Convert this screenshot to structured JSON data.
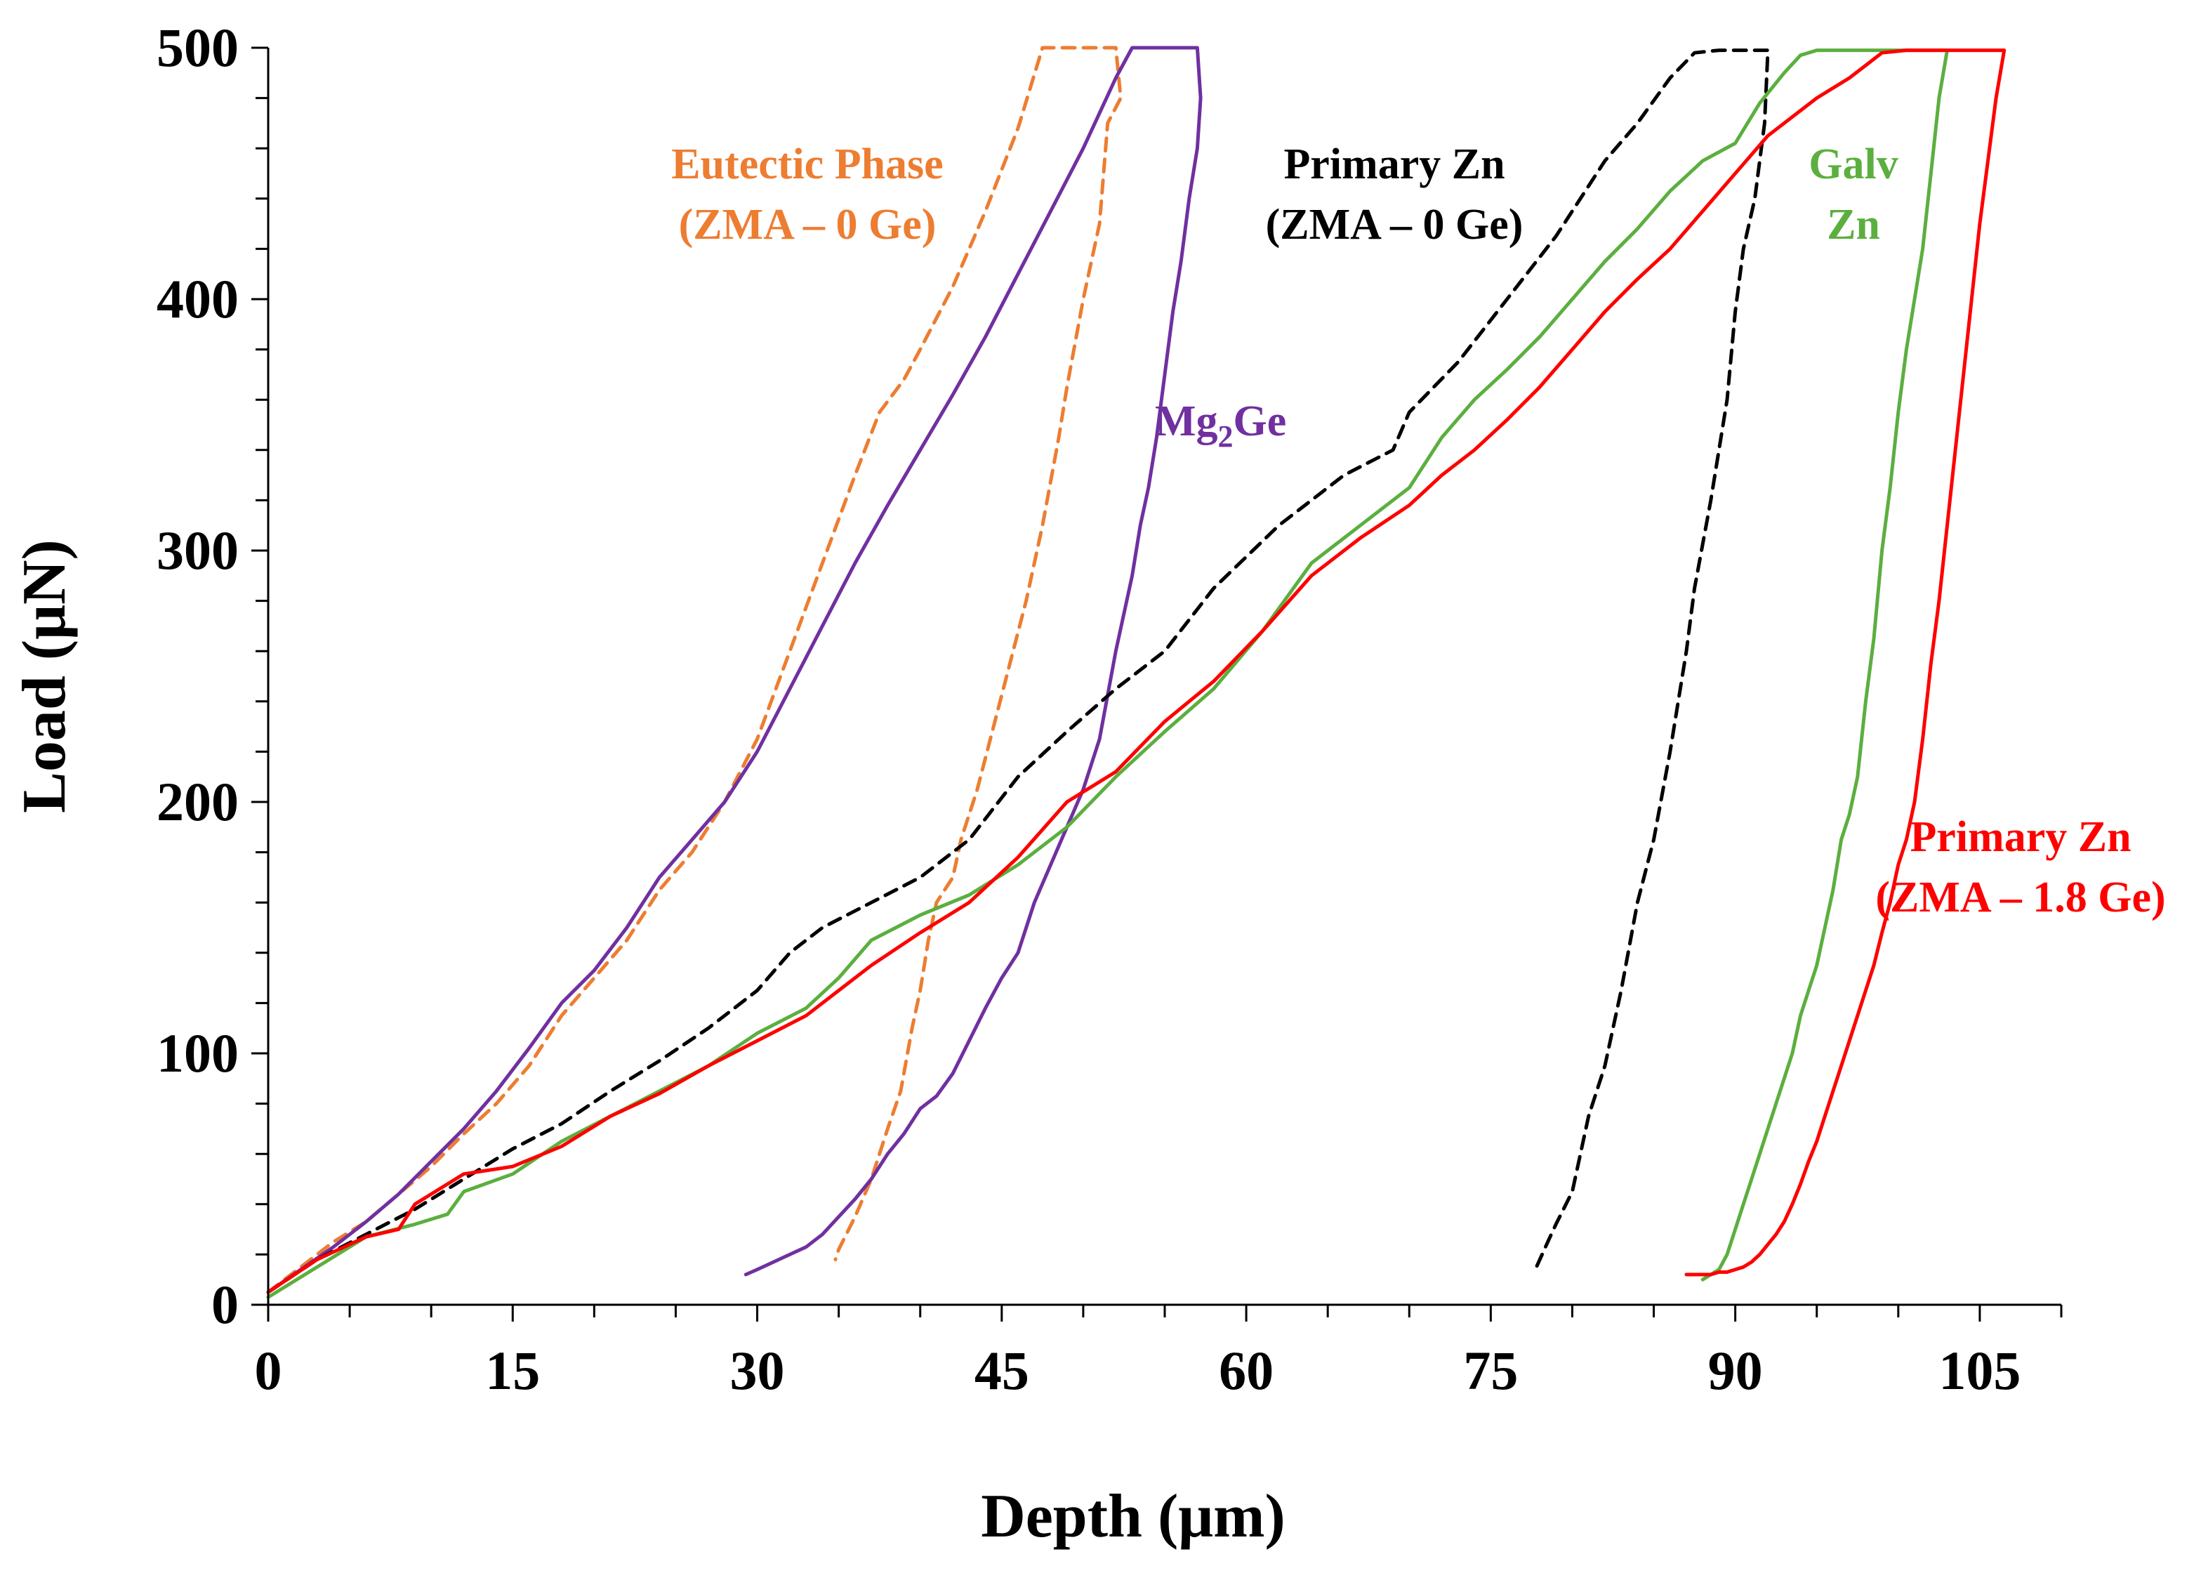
{
  "chart_data": {
    "type": "line",
    "title": "",
    "xlabel": "Depth (μm)",
    "ylabel": "Load (μN)",
    "xlim": [
      0,
      110
    ],
    "ylim": [
      0,
      500
    ],
    "xticks": [
      0,
      15,
      30,
      45,
      60,
      75,
      90,
      105
    ],
    "yticks": [
      0,
      100,
      200,
      300,
      400,
      500
    ],
    "x_minor_step": 5,
    "y_minor_step": 20,
    "grid": false,
    "series": [
      {
        "name": "Eutectic Phase (ZMA – 0 Ge)",
        "label_lines": [
          "Eutectic Phase",
          "(ZMA – 0 Ge)"
        ],
        "color": "#ED7D31",
        "dash": true,
        "x": [
          0,
          2,
          4,
          6,
          8,
          10,
          12,
          14,
          16,
          18,
          20,
          22,
          24,
          26,
          28,
          30,
          32,
          34,
          36,
          37.5,
          39,
          40,
          42,
          44,
          46,
          47.5,
          48,
          49,
          50.5,
          51.5,
          52,
          52.3,
          51.5,
          51,
          50,
          49,
          48.5,
          47.5,
          46.5,
          45.5,
          44.5,
          43.5,
          42.5,
          42,
          41,
          40.5,
          40,
          39.5,
          38.8,
          38,
          37.5,
          37,
          36,
          35,
          34.8
        ],
        "y": [
          5,
          15,
          25,
          33,
          44,
          55,
          68,
          80,
          95,
          115,
          130,
          145,
          165,
          180,
          200,
          225,
          260,
          295,
          330,
          355,
          368,
          380,
          405,
          435,
          468,
          500,
          500,
          500,
          500,
          500,
          500,
          480,
          470,
          430,
          400,
          365,
          345,
          310,
          280,
          255,
          230,
          205,
          185,
          170,
          160,
          145,
          125,
          110,
          85,
          70,
          60,
          50,
          35,
          22,
          18
        ]
      },
      {
        "name": "Mg2Ge",
        "label_main": "Mg",
        "label_sub": "2",
        "label_end": "Ge",
        "color": "#7030A0",
        "dash": false,
        "x": [
          0,
          2,
          4,
          6,
          8,
          10,
          12,
          14,
          16,
          18,
          20,
          22,
          24,
          26,
          28,
          30,
          32,
          34,
          36,
          38,
          40,
          42,
          44,
          46,
          48,
          50,
          52,
          53,
          54,
          55,
          56,
          57,
          57.2,
          57,
          56.5,
          56,
          55.5,
          55,
          54.5,
          54,
          53.5,
          53,
          52,
          51,
          50,
          49,
          48,
          47,
          46,
          45,
          44,
          43,
          42,
          41,
          40,
          39,
          38,
          37,
          36,
          35,
          34,
          33,
          32,
          31,
          30,
          29.3
        ],
        "y": [
          5,
          14,
          23,
          33,
          44,
          57,
          70,
          85,
          102,
          120,
          133,
          150,
          170,
          185,
          200,
          220,
          245,
          270,
          295,
          318,
          340,
          362,
          385,
          410,
          435,
          460,
          488,
          500,
          500,
          500,
          500,
          500,
          480,
          460,
          440,
          415,
          395,
          370,
          345,
          325,
          310,
          290,
          260,
          225,
          205,
          190,
          175,
          160,
          140,
          130,
          118,
          105,
          92,
          83,
          78,
          68,
          60,
          50,
          42,
          35,
          28,
          23,
          20,
          17,
          14,
          12
        ]
      },
      {
        "name": "Primary Zn (ZMA – 0 Ge)",
        "label_lines": [
          "Primary Zn",
          "(ZMA – 0 Ge)"
        ],
        "color": "#000000",
        "dash": true,
        "x": [
          0,
          3,
          6,
          9,
          12,
          15,
          18,
          21,
          24,
          27,
          30,
          32,
          34,
          37,
          40,
          43,
          46,
          49,
          52,
          55,
          58,
          62,
          66,
          69,
          70,
          73,
          76,
          79,
          82,
          84,
          86,
          87.5,
          89,
          90.5,
          91.5,
          92,
          91.8,
          91.2,
          90.5,
          90,
          89.5,
          88.5,
          87.5,
          87,
          86,
          85,
          84,
          83,
          82,
          81,
          80.5,
          80,
          79,
          78.5,
          77.8
        ],
        "y": [
          5,
          18,
          28,
          38,
          50,
          62,
          72,
          85,
          97,
          110,
          125,
          140,
          150,
          160,
          170,
          185,
          210,
          228,
          245,
          260,
          285,
          310,
          330,
          340,
          355,
          375,
          400,
          425,
          455,
          470,
          488,
          498,
          499,
          499,
          499,
          499,
          470,
          440,
          420,
          395,
          360,
          320,
          285,
          260,
          220,
          185,
          160,
          125,
          95,
          75,
          60,
          45,
          32,
          25,
          15
        ]
      },
      {
        "name": "Galv Zn",
        "label_lines": [
          "Galv",
          "Zn"
        ],
        "color": "#5BAF3F",
        "dash": false,
        "x": [
          0,
          3,
          6,
          9,
          11,
          12,
          15,
          18,
          21,
          24,
          27,
          30,
          33,
          35,
          37,
          40,
          43,
          46,
          49,
          52,
          55,
          58,
          61,
          64,
          67,
          70,
          72,
          74,
          76,
          78,
          80,
          82,
          84,
          86,
          88,
          90,
          91.5,
          93,
          94,
          95,
          96,
          98,
          100,
          102,
          103,
          102.5,
          102,
          101.5,
          101,
          100.5,
          100,
          99.5,
          99,
          98.5,
          98,
          97.5,
          97,
          96.5,
          96,
          95.5,
          95,
          94.5,
          94,
          93.5,
          93,
          92.5,
          92,
          91.5,
          91,
          90.5,
          90,
          89.5,
          89,
          88.5,
          88
        ],
        "y": [
          3,
          15,
          27,
          32,
          36,
          45,
          52,
          65,
          75,
          85,
          95,
          108,
          118,
          130,
          145,
          155,
          163,
          175,
          190,
          210,
          228,
          245,
          268,
          295,
          310,
          325,
          345,
          360,
          372,
          385,
          400,
          415,
          428,
          443,
          455,
          462,
          478,
          490,
          497,
          499,
          499,
          499,
          499,
          499,
          499,
          480,
          450,
          420,
          400,
          380,
          355,
          325,
          300,
          265,
          240,
          210,
          195,
          185,
          165,
          150,
          135,
          125,
          115,
          100,
          90,
          80,
          70,
          60,
          50,
          40,
          30,
          20,
          14,
          12,
          10
        ]
      },
      {
        "name": "Primary Zn (ZMA – 1.8 Ge)",
        "label_lines": [
          "Primary Zn",
          "(ZMA – 1.8 Ge)"
        ],
        "color": "#FF0000",
        "dash": false,
        "x": [
          0,
          3,
          6,
          8,
          9,
          12,
          15,
          18,
          21,
          24,
          27,
          30,
          33,
          35,
          37,
          40,
          43,
          46,
          49,
          52,
          55,
          58,
          61,
          64,
          67,
          70,
          72,
          74,
          76,
          78,
          80,
          82,
          84,
          86,
          88,
          90,
          92,
          95,
          97,
          99,
          100.5,
          102,
          104,
          106,
          106.5,
          106,
          105.5,
          105,
          104.5,
          104,
          103.5,
          103,
          102.5,
          102,
          101.5,
          101,
          100.5,
          100,
          99.5,
          99,
          98.5,
          98,
          97.5,
          97,
          96.5,
          96,
          95.5,
          95,
          94.5,
          94,
          93.5,
          93,
          92.5,
          92,
          91.5,
          91,
          90.5,
          90,
          89.5,
          89,
          88.5,
          88,
          87.5,
          87
        ],
        "y": [
          5,
          18,
          27,
          30,
          40,
          52,
          55,
          63,
          75,
          84,
          95,
          105,
          115,
          125,
          135,
          148,
          160,
          178,
          200,
          212,
          232,
          248,
          268,
          290,
          305,
          318,
          330,
          340,
          352,
          365,
          380,
          395,
          408,
          420,
          435,
          450,
          465,
          480,
          488,
          498,
          499,
          499,
          499,
          499,
          499,
          480,
          455,
          430,
          400,
          370,
          340,
          310,
          280,
          255,
          225,
          200,
          185,
          175,
          160,
          148,
          135,
          125,
          115,
          105,
          95,
          85,
          75,
          65,
          57,
          48,
          40,
          33,
          28,
          24,
          20,
          17,
          15,
          14,
          13,
          13,
          12,
          12,
          12,
          12
        ]
      }
    ]
  }
}
